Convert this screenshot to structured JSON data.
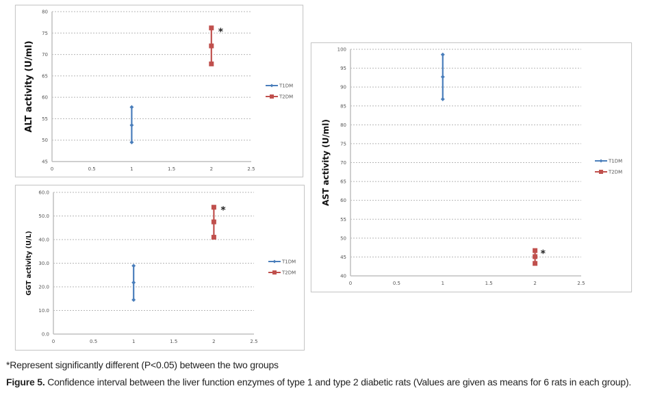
{
  "colors": {
    "t1dm": "#4a7ebb",
    "t2dm": "#c0504d"
  },
  "chart_data": [
    {
      "id": "alt",
      "type": "line",
      "ylabel": "ALT activity (U/ml)",
      "xlim": [
        0,
        2.5
      ],
      "ylim": [
        45,
        80
      ],
      "xticks": [
        "0",
        "0.5",
        "1",
        "1.5",
        "2",
        "2.5"
      ],
      "yticks": [
        "45",
        "50",
        "55",
        "60",
        "65",
        "70",
        "75",
        "80"
      ],
      "grid": true,
      "legend_position": "right",
      "annotation": "*",
      "series": [
        {
          "name": "T1DM",
          "x": 1,
          "values": [
            49.5,
            53.5,
            57.7
          ]
        },
        {
          "name": "T2DM",
          "x": 2,
          "values": [
            67.8,
            72.0,
            76.2
          ]
        }
      ]
    },
    {
      "id": "ggt",
      "type": "line",
      "ylabel": "GGT activity (U/L)",
      "xlim": [
        0,
        2.5
      ],
      "ylim": [
        0,
        60
      ],
      "xticks": [
        "0",
        "0.5",
        "1",
        "1.5",
        "2",
        "2.5"
      ],
      "yticks": [
        "0.0",
        "10.0",
        "20.0",
        "30.0",
        "40.0",
        "50.0",
        "60.0"
      ],
      "grid": true,
      "legend_position": "right",
      "annotation": "*",
      "series": [
        {
          "name": "T1DM",
          "x": 1,
          "values": [
            14.5,
            21.8,
            28.9
          ]
        },
        {
          "name": "T2DM",
          "x": 2,
          "values": [
            41.0,
            47.5,
            53.7
          ]
        }
      ]
    },
    {
      "id": "ast",
      "type": "line",
      "ylabel": "AST activity (U/ml)",
      "xlim": [
        0,
        2.5
      ],
      "ylim": [
        40,
        100
      ],
      "xticks": [
        "0",
        "0.5",
        "1",
        "1.5",
        "2",
        "2.5"
      ],
      "yticks": [
        "40",
        "45",
        "50",
        "55",
        "60",
        "65",
        "70",
        "75",
        "80",
        "85",
        "90",
        "95",
        "100"
      ],
      "grid": true,
      "legend_position": "right",
      "annotation": "*",
      "series": [
        {
          "name": "T1DM",
          "x": 1,
          "values": [
            86.8,
            92.7,
            98.6
          ]
        },
        {
          "name": "T2DM",
          "x": 2,
          "values": [
            43.3,
            45.1,
            46.7
          ]
        }
      ]
    }
  ],
  "footnote": "*Represent significantly different (P<0.05) between the two groups",
  "caption": {
    "label": "Figure 5.",
    "text": " Confidence interval between the liver function enzymes of type 1 and type 2 diabetic rats (Values are given as means for 6 rats in each group)."
  }
}
